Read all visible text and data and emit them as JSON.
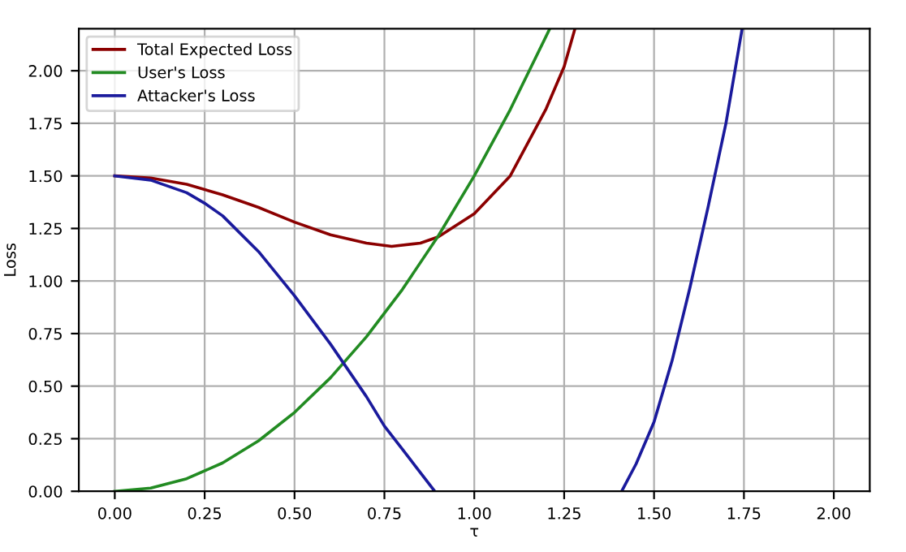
{
  "chart_data": {
    "type": "line",
    "xlabel": "τ",
    "ylabel": "Loss",
    "xlim": [
      -0.1,
      2.1
    ],
    "ylim": [
      0,
      2.2
    ],
    "xticks": [
      {
        "value": 0,
        "label": "0.00"
      },
      {
        "value": 0.25,
        "label": "0.25"
      },
      {
        "value": 0.5,
        "label": "0.50"
      },
      {
        "value": 0.75,
        "label": "0.75"
      },
      {
        "value": 1,
        "label": "1.00"
      },
      {
        "value": 1.25,
        "label": "1.25"
      },
      {
        "value": 1.5,
        "label": "1.50"
      },
      {
        "value": 1.75,
        "label": "1.75"
      },
      {
        "value": 2,
        "label": "2.00"
      }
    ],
    "yticks": [
      {
        "value": 0,
        "label": "0.00"
      },
      {
        "value": 0.25,
        "label": "0.25"
      },
      {
        "value": 0.5,
        "label": "0.50"
      },
      {
        "value": 0.75,
        "label": "0.75"
      },
      {
        "value": 1,
        "label": "1.00"
      },
      {
        "value": 1.25,
        "label": "1.25"
      },
      {
        "value": 1.5,
        "label": "1.50"
      },
      {
        "value": 1.75,
        "label": "1.75"
      },
      {
        "value": 2,
        "label": "2.00"
      }
    ],
    "grid": true,
    "legend": "top left",
    "series": [
      {
        "name": "Total Expected Loss",
        "color": "#8b0000",
        "x": [
          0,
          0.1,
          0.2,
          0.3,
          0.4,
          0.5,
          0.6,
          0.7,
          0.77,
          0.85,
          0.9,
          1.0,
          1.1,
          1.2,
          1.25,
          1.28
        ],
        "values": [
          1.5,
          1.49,
          1.46,
          1.41,
          1.35,
          1.28,
          1.22,
          1.18,
          1.165,
          1.18,
          1.21,
          1.32,
          1.5,
          1.82,
          2.02,
          2.2
        ]
      },
      {
        "name": "User's Loss",
        "color": "#228b22",
        "x": [
          0,
          0.1,
          0.2,
          0.3,
          0.4,
          0.5,
          0.6,
          0.7,
          0.8,
          0.9,
          1.0,
          1.1,
          1.21
        ],
        "values": [
          0,
          0.015,
          0.06,
          0.135,
          0.24,
          0.375,
          0.54,
          0.735,
          0.96,
          1.215,
          1.5,
          1.815,
          2.2
        ]
      },
      {
        "name": "Attacker's Loss",
        "color": "#1a1a9c",
        "x": [
          0,
          0.1,
          0.2,
          0.25,
          0.3,
          0.4,
          0.5,
          0.6,
          0.7,
          0.75,
          0.8,
          0.89,
          1.0,
          1.41,
          1.45,
          1.5,
          1.55,
          1.6,
          1.65,
          1.7,
          1.745
        ],
        "values": [
          1.5,
          1.48,
          1.42,
          1.37,
          1.31,
          1.14,
          0.93,
          0.7,
          0.45,
          0.31,
          0.2,
          0.0,
          null,
          0.0,
          0.13,
          0.33,
          0.62,
          0.97,
          1.35,
          1.75,
          2.2
        ]
      }
    ]
  }
}
